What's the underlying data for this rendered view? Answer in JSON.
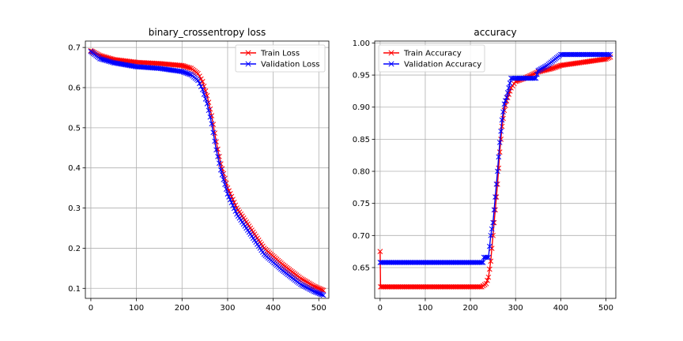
{
  "chart_data": [
    {
      "type": "line",
      "title": "binary_crossentropy loss",
      "xlabel": "",
      "ylabel": "",
      "xlim": [
        -12,
        522
      ],
      "ylim": [
        0.075,
        0.716
      ],
      "xticks": [
        0,
        100,
        200,
        300,
        400,
        500
      ],
      "yticks": [
        0.1,
        0.2,
        0.3,
        0.4,
        0.5,
        0.6,
        0.7
      ],
      "grid": true,
      "legend": "top-right",
      "marker": "x",
      "series": [
        {
          "name": "Train Loss",
          "color": "#ff0000",
          "x": [
            0,
            20,
            50,
            100,
            150,
            200,
            220,
            235,
            245,
            255,
            265,
            275,
            285,
            300,
            320,
            350,
            380,
            420,
            460,
            490,
            510
          ],
          "y": [
            0.692,
            0.68,
            0.67,
            0.663,
            0.66,
            0.655,
            0.648,
            0.635,
            0.615,
            0.58,
            0.53,
            0.465,
            0.41,
            0.35,
            0.3,
            0.25,
            0.2,
            0.16,
            0.125,
            0.105,
            0.095
          ]
        },
        {
          "name": "Validation Loss",
          "color": "#0000ff",
          "x": [
            0,
            20,
            50,
            100,
            150,
            200,
            220,
            235,
            245,
            255,
            265,
            275,
            285,
            300,
            320,
            350,
            380,
            420,
            460,
            490,
            510
          ],
          "y": [
            0.69,
            0.672,
            0.662,
            0.652,
            0.648,
            0.64,
            0.632,
            0.618,
            0.595,
            0.56,
            0.51,
            0.445,
            0.395,
            0.335,
            0.285,
            0.235,
            0.185,
            0.145,
            0.11,
            0.092,
            0.083
          ]
        }
      ]
    },
    {
      "type": "line",
      "title": "accuracy",
      "xlabel": "",
      "ylabel": "",
      "xlim": [
        -12,
        522
      ],
      "ylim": [
        0.602,
        1.003
      ],
      "xticks": [
        0,
        100,
        200,
        300,
        400,
        500
      ],
      "yticks": [
        0.65,
        0.7,
        0.75,
        0.8,
        0.85,
        0.9,
        0.95,
        1.0
      ],
      "grid": true,
      "legend": "top-left",
      "marker": "x",
      "series": [
        {
          "name": "Train Accuracy",
          "color": "#ff0000",
          "x": [
            0,
            1,
            100,
            200,
            225,
            235,
            240,
            245,
            250,
            255,
            260,
            265,
            270,
            275,
            280,
            285,
            290,
            300,
            320,
            350,
            380,
            400,
            450,
            500,
            510
          ],
          "y": [
            0.675,
            0.62,
            0.62,
            0.62,
            0.62,
            0.625,
            0.635,
            0.66,
            0.7,
            0.74,
            0.78,
            0.83,
            0.87,
            0.895,
            0.91,
            0.92,
            0.93,
            0.94,
            0.945,
            0.955,
            0.96,
            0.965,
            0.97,
            0.975,
            0.978
          ]
        },
        {
          "name": "Validation Accuracy",
          "color": "#0000ff",
          "x": [
            0,
            100,
            200,
            228,
            230,
            240,
            245,
            250,
            255,
            260,
            265,
            270,
            275,
            280,
            285,
            290,
            300,
            320,
            345,
            350,
            370,
            400,
            450,
            500,
            510
          ],
          "y": [
            0.658,
            0.658,
            0.658,
            0.658,
            0.666,
            0.666,
            0.7,
            0.72,
            0.76,
            0.8,
            0.845,
            0.88,
            0.905,
            0.915,
            0.93,
            0.945,
            0.945,
            0.945,
            0.945,
            0.957,
            0.965,
            0.982,
            0.982,
            0.982,
            0.982
          ]
        }
      ]
    }
  ]
}
